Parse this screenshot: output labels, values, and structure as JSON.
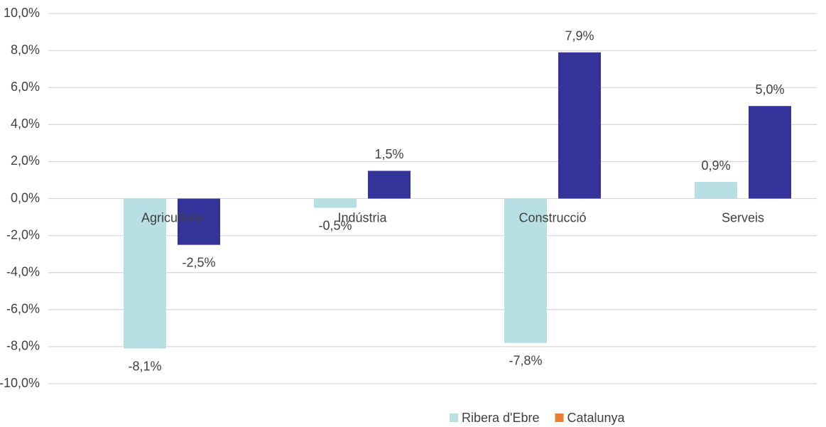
{
  "chart_data": {
    "type": "bar",
    "categories": [
      "Agricultura",
      "Indústria",
      "Construcció",
      "Serveis"
    ],
    "series": [
      {
        "name": "Ribera d'Ebre",
        "color": "#b8dfe3",
        "legend_color": "#b8dfe3",
        "values": [
          -8.1,
          -0.5,
          -7.8,
          0.9
        ],
        "value_labels": [
          "-8,1%",
          "-0,5%",
          "-7,8%",
          "0,9%"
        ]
      },
      {
        "name": "Catalunya",
        "color": "#333399",
        "legend_color": "#ed7d31",
        "values": [
          -2.5,
          1.5,
          7.9,
          5.0
        ],
        "value_labels": [
          "-2,5%",
          "1,5%",
          "7,9%",
          "5,0%"
        ]
      }
    ],
    "ylim": [
      -10,
      10
    ],
    "yticks": [
      {
        "value": 10,
        "label": "10,0%"
      },
      {
        "value": 8,
        "label": "8,0%"
      },
      {
        "value": 6,
        "label": "6,0%"
      },
      {
        "value": 4,
        "label": "4,0%"
      },
      {
        "value": 2,
        "label": "2,0%"
      },
      {
        "value": 0,
        "label": "0,0%"
      },
      {
        "value": -2,
        "label": "-2,0%"
      },
      {
        "value": -4,
        "label": "-4,0%"
      },
      {
        "value": -6,
        "label": "-6,0%"
      },
      {
        "value": -8,
        "label": "-8,0%"
      },
      {
        "value": -10,
        "label": "-10,0%"
      }
    ],
    "grid": true,
    "legend": "bottom"
  }
}
